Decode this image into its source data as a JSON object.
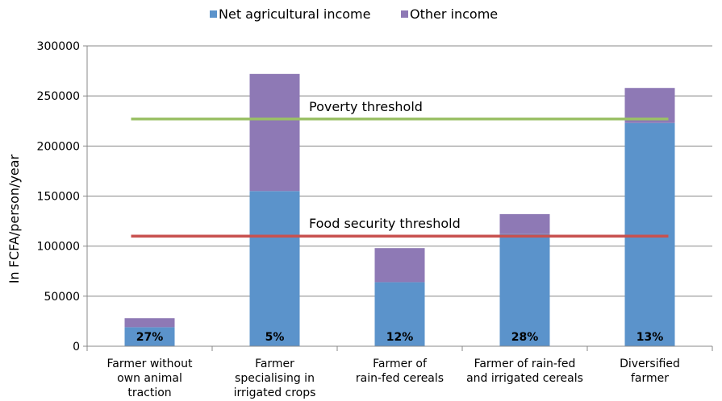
{
  "chart_data": {
    "type": "bar",
    "stacked": true,
    "ylabel": "In FCFA/person/year",
    "ylim": [
      0,
      300000
    ],
    "yticks": [
      0,
      50000,
      100000,
      150000,
      200000,
      250000,
      300000
    ],
    "grid": "horizontal",
    "legend_position": "top",
    "categories": [
      [
        "Farmer without",
        "own animal",
        "traction"
      ],
      [
        "Farmer",
        "specialising in",
        "irrigated crops"
      ],
      [
        "Farmer of",
        "rain-fed cereals"
      ],
      [
        "Farmer of rain-fed",
        "and irrigated cereals"
      ],
      [
        "Diversified",
        "farmer"
      ]
    ],
    "series": [
      {
        "name": "Net agricultural income",
        "color": "#5B93CB",
        "values": [
          19000,
          155000,
          64000,
          112000,
          223000
        ]
      },
      {
        "name": "Other income",
        "color": "#8E79B5",
        "values": [
          9000,
          117000,
          34000,
          20000,
          35000
        ]
      }
    ],
    "bar_labels": [
      "27%",
      "5%",
      "12%",
      "28%",
      "13%"
    ],
    "thresholds": [
      {
        "label": "Poverty threshold",
        "value": 227000,
        "color": "#9BC067"
      },
      {
        "label": "Food security threshold",
        "value": 110000,
        "color": "#C8514F"
      }
    ]
  }
}
